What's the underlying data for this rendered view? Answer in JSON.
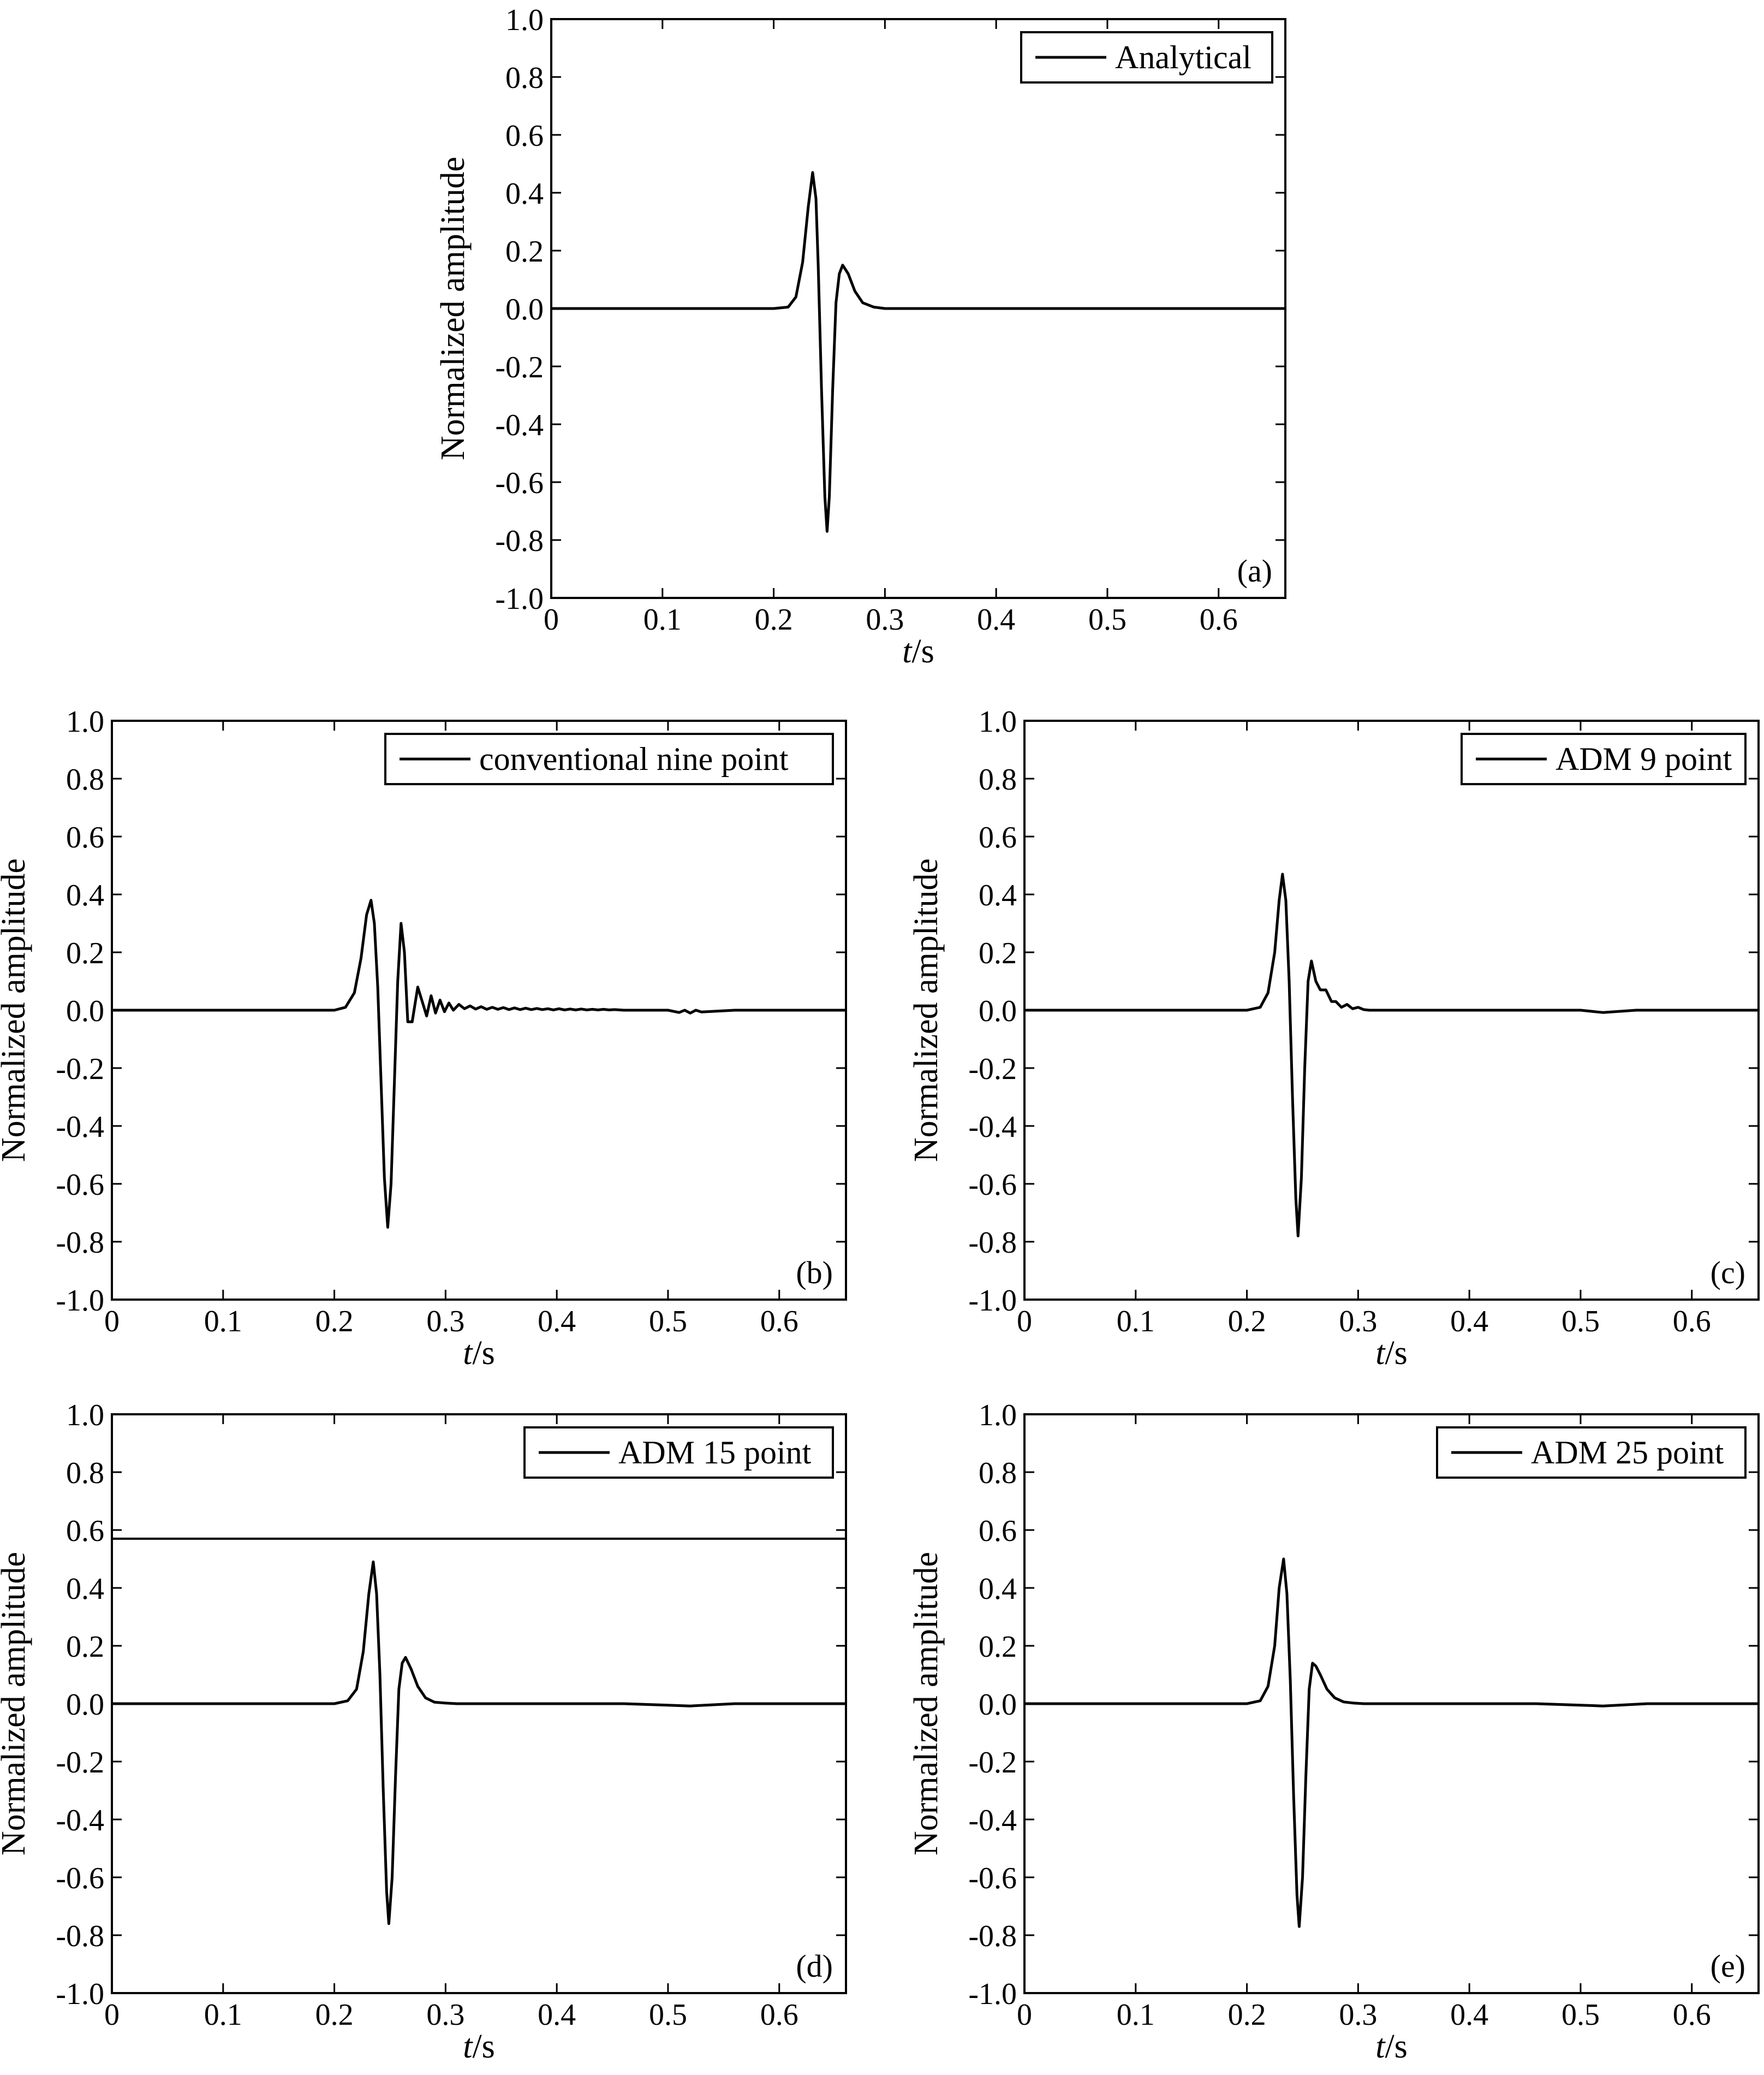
{
  "chart_data": [
    {
      "type": "line",
      "panel_label": "(a)",
      "xlabel_italic": "t",
      "xlabel_unit": "/s",
      "ylabel": "Normalized amplitude",
      "xlim": [
        0,
        0.66
      ],
      "ylim": [
        -1.0,
        1.0
      ],
      "xticks": [
        "0",
        "0.1",
        "0.2",
        "0.3",
        "0.4",
        "0.5",
        "0.6"
      ],
      "yticks": [
        "1.0",
        "0.8",
        "0.6",
        "0.4",
        "0.2",
        "0.0",
        "-0.2",
        "-0.4",
        "-0.6",
        "-0.8",
        "-1.0"
      ],
      "legend_position": "top-right",
      "series": [
        {
          "name": "Analytical",
          "x": [
            0,
            0.2,
            0.213,
            0.22,
            0.226,
            0.231,
            0.235,
            0.238,
            0.24,
            0.243,
            0.246,
            0.248,
            0.25,
            0.253,
            0.256,
            0.259,
            0.262,
            0.267,
            0.273,
            0.28,
            0.29,
            0.3,
            0.31,
            0.66
          ],
          "y": [
            0,
            0,
            0.005,
            0.04,
            0.16,
            0.35,
            0.47,
            0.38,
            0.15,
            -0.28,
            -0.65,
            -0.77,
            -0.65,
            -0.28,
            0.02,
            0.12,
            0.15,
            0.12,
            0.06,
            0.02,
            0.005,
            0,
            0,
            0
          ]
        }
      ]
    },
    {
      "type": "line",
      "panel_label": "(b)",
      "xlabel_italic": "t",
      "xlabel_unit": "/s",
      "ylabel": "Normalized amplitude",
      "xlim": [
        0,
        0.66
      ],
      "ylim": [
        -1.0,
        1.0
      ],
      "xticks": [
        "0",
        "0.1",
        "0.2",
        "0.3",
        "0.4",
        "0.5",
        "0.6"
      ],
      "yticks": [
        "1.0",
        "0.8",
        "0.6",
        "0.4",
        "0.2",
        "0.0",
        "-0.2",
        "-0.4",
        "-0.6",
        "-0.8",
        "-1.0"
      ],
      "legend_position": "top-right",
      "series": [
        {
          "name": "conventional nine point",
          "x": [
            0,
            0.2,
            0.21,
            0.218,
            0.224,
            0.229,
            0.233,
            0.236,
            0.239,
            0.242,
            0.245,
            0.248,
            0.251,
            0.254,
            0.257,
            0.26,
            0.263,
            0.266,
            0.27,
            0.275,
            0.279,
            0.283,
            0.287,
            0.291,
            0.295,
            0.299,
            0.303,
            0.307,
            0.312,
            0.317,
            0.322,
            0.327,
            0.332,
            0.337,
            0.342,
            0.347,
            0.352,
            0.357,
            0.362,
            0.367,
            0.372,
            0.377,
            0.382,
            0.387,
            0.392,
            0.397,
            0.402,
            0.407,
            0.412,
            0.417,
            0.422,
            0.427,
            0.432,
            0.437,
            0.442,
            0.447,
            0.452,
            0.46,
            0.5,
            0.51,
            0.515,
            0.52,
            0.525,
            0.53,
            0.56,
            0.66
          ],
          "y": [
            0,
            0,
            0.01,
            0.06,
            0.18,
            0.33,
            0.38,
            0.3,
            0.08,
            -0.25,
            -0.58,
            -0.75,
            -0.6,
            -0.25,
            0.1,
            0.3,
            0.2,
            -0.04,
            -0.04,
            0.08,
            0.03,
            -0.02,
            0.05,
            -0.01,
            0.035,
            -0.005,
            0.025,
            0,
            0.02,
            0.005,
            0.015,
            0.004,
            0.012,
            0.003,
            0.01,
            0.003,
            0.009,
            0.002,
            0.008,
            0.002,
            0.007,
            0.002,
            0.006,
            0.002,
            0.005,
            0.001,
            0.005,
            0.001,
            0.004,
            0.001,
            0.004,
            0.001,
            0.003,
            0.001,
            0.003,
            0.001,
            0.002,
            0,
            0,
            -0.008,
            0,
            -0.01,
            0,
            -0.006,
            0,
            0
          ]
        }
      ]
    },
    {
      "type": "line",
      "panel_label": "(c)",
      "xlabel_italic": "t",
      "xlabel_unit": "/s",
      "ylabel": "Normalized amplitude",
      "xlim": [
        0,
        0.66
      ],
      "ylim": [
        -1.0,
        1.0
      ],
      "xticks": [
        "0",
        "0.1",
        "0.2",
        "0.3",
        "0.4",
        "0.5",
        "0.6"
      ],
      "yticks": [
        "1.0",
        "0.8",
        "0.6",
        "0.4",
        "0.2",
        "0.0",
        "-0.2",
        "-0.4",
        "-0.6",
        "-0.8",
        "-1.0"
      ],
      "legend_position": "top-right",
      "series": [
        {
          "name": "ADM 9 point",
          "x": [
            0,
            0.2,
            0.212,
            0.219,
            0.225,
            0.229,
            0.232,
            0.235,
            0.238,
            0.241,
            0.244,
            0.246,
            0.249,
            0.252,
            0.255,
            0.258,
            0.262,
            0.266,
            0.271,
            0.276,
            0.28,
            0.285,
            0.29,
            0.295,
            0.3,
            0.305,
            0.31,
            0.5,
            0.52,
            0.55,
            0.66
          ],
          "y": [
            0,
            0,
            0.01,
            0.06,
            0.2,
            0.38,
            0.47,
            0.38,
            0.1,
            -0.3,
            -0.65,
            -0.78,
            -0.58,
            -0.2,
            0.1,
            0.17,
            0.1,
            0.07,
            0.07,
            0.03,
            0.03,
            0.01,
            0.02,
            0.005,
            0.01,
            0.002,
            0,
            0,
            -0.008,
            0,
            0
          ]
        }
      ]
    },
    {
      "type": "line",
      "panel_label": "(d)",
      "xlabel_italic": "t",
      "xlabel_unit": "/s",
      "ylabel": "Normalized amplitude",
      "xlim": [
        0,
        0.66
      ],
      "ylim": [
        -1.0,
        1.0
      ],
      "xticks": [
        "0",
        "0.1",
        "0.2",
        "0.3",
        "0.4",
        "0.5",
        "0.6"
      ],
      "yticks": [
        "1.0",
        "0.8",
        "0.6",
        "0.4",
        "0.2",
        "0.0",
        "-0.2",
        "-0.4",
        "-0.6",
        "-0.8",
        "-1.0"
      ],
      "legend_position": "top-right",
      "reference_line_y": 0.57,
      "series": [
        {
          "name": "ADM 15 point",
          "x": [
            0,
            0.2,
            0.212,
            0.22,
            0.226,
            0.231,
            0.235,
            0.238,
            0.241,
            0.244,
            0.247,
            0.249,
            0.252,
            0.255,
            0.258,
            0.261,
            0.264,
            0.269,
            0.275,
            0.282,
            0.29,
            0.3,
            0.31,
            0.46,
            0.5,
            0.52,
            0.56,
            0.66
          ],
          "y": [
            0,
            0,
            0.01,
            0.05,
            0.18,
            0.38,
            0.49,
            0.38,
            0.1,
            -0.3,
            -0.65,
            -0.76,
            -0.6,
            -0.25,
            0.05,
            0.14,
            0.16,
            0.12,
            0.06,
            0.02,
            0.005,
            0.002,
            0,
            0,
            -0.005,
            -0.008,
            0,
            0
          ]
        }
      ]
    },
    {
      "type": "line",
      "panel_label": "(e)",
      "xlabel_italic": "t",
      "xlabel_unit": "/s",
      "ylabel": "Normalized amplitude",
      "xlim": [
        0,
        0.66
      ],
      "ylim": [
        -1.0,
        1.0
      ],
      "xticks": [
        "0",
        "0.1",
        "0.2",
        "0.3",
        "0.4",
        "0.5",
        "0.6"
      ],
      "yticks": [
        "1.0",
        "0.8",
        "0.6",
        "0.4",
        "0.2",
        "0.0",
        "-0.2",
        "-0.4",
        "-0.6",
        "-0.8",
        "-1.0"
      ],
      "legend_position": "top-right",
      "series": [
        {
          "name": "ADM 25 point",
          "x": [
            0,
            0.2,
            0.212,
            0.219,
            0.225,
            0.229,
            0.233,
            0.236,
            0.239,
            0.242,
            0.245,
            0.247,
            0.25,
            0.253,
            0.256,
            0.259,
            0.262,
            0.266,
            0.272,
            0.279,
            0.287,
            0.296,
            0.305,
            0.46,
            0.5,
            0.52,
            0.56,
            0.66
          ],
          "y": [
            0,
            0,
            0.01,
            0.06,
            0.2,
            0.4,
            0.5,
            0.38,
            0.08,
            -0.32,
            -0.66,
            -0.77,
            -0.6,
            -0.25,
            0.05,
            0.14,
            0.13,
            0.1,
            0.05,
            0.02,
            0.006,
            0.002,
            0,
            0,
            -0.005,
            -0.008,
            0,
            0
          ]
        }
      ]
    }
  ]
}
